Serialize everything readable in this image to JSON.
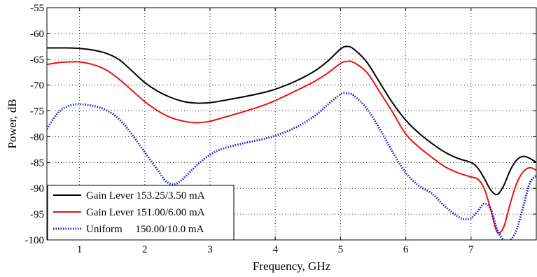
{
  "chart_data": {
    "type": "line",
    "title": "",
    "xlabel": "Frequency, GHz",
    "ylabel": "Power, dB",
    "xlim": [
      0.5,
      8.0
    ],
    "ylim": [
      -100,
      -55
    ],
    "x_ticks": [
      1,
      2,
      3,
      4,
      5,
      6,
      7
    ],
    "y_ticks": [
      -100,
      -95,
      -90,
      -85,
      -80,
      -75,
      -70,
      -65,
      -60,
      -55
    ],
    "grid": true,
    "grid_style": "dotted",
    "legend": {
      "position": "bottom-left"
    },
    "series": [
      {
        "name": "Gain Lever 153.25/3.50 mA",
        "color": "#000000",
        "line_style": "solid",
        "x": [
          0.5,
          0.8,
          1.0,
          1.2,
          1.4,
          1.6,
          1.8,
          2.0,
          2.2,
          2.4,
          2.6,
          2.8,
          3.0,
          3.2,
          3.5,
          3.8,
          4.0,
          4.3,
          4.6,
          4.8,
          5.0,
          5.1,
          5.2,
          5.4,
          5.6,
          5.8,
          6.0,
          6.2,
          6.4,
          6.6,
          6.8,
          7.0,
          7.1,
          7.2,
          7.3,
          7.4,
          7.5,
          7.6,
          7.7,
          7.8,
          7.9,
          8.0
        ],
        "y": [
          -62.8,
          -62.8,
          -62.9,
          -63.2,
          -63.8,
          -65.0,
          -67.2,
          -69.5,
          -71.2,
          -72.4,
          -73.2,
          -73.5,
          -73.4,
          -73.0,
          -72.3,
          -71.5,
          -70.8,
          -69.3,
          -67.3,
          -65.4,
          -63.0,
          -62.5,
          -63.0,
          -65.5,
          -69.5,
          -73.5,
          -76.8,
          -79.3,
          -81.3,
          -83.0,
          -84.2,
          -85.0,
          -86.0,
          -88.0,
          -90.3,
          -91.2,
          -89.5,
          -86.5,
          -84.5,
          -83.8,
          -84.2,
          -85.0
        ]
      },
      {
        "name": "Gain Lever 151.00/6.00 mA",
        "color": "#e8130a",
        "line_style": "solid",
        "x": [
          0.5,
          0.7,
          0.9,
          1.0,
          1.2,
          1.4,
          1.6,
          1.8,
          2.0,
          2.2,
          2.4,
          2.6,
          2.8,
          3.0,
          3.2,
          3.5,
          3.8,
          4.0,
          4.3,
          4.6,
          4.8,
          5.0,
          5.1,
          5.2,
          5.4,
          5.6,
          5.8,
          6.0,
          6.2,
          6.4,
          6.6,
          6.8,
          7.0,
          7.1,
          7.2,
          7.3,
          7.4,
          7.5,
          7.6,
          7.7,
          7.8,
          7.9,
          8.0
        ],
        "y": [
          -66.0,
          -65.6,
          -65.5,
          -65.5,
          -66.0,
          -67.0,
          -68.8,
          -71.0,
          -73.2,
          -75.0,
          -76.3,
          -77.0,
          -77.3,
          -77.0,
          -76.3,
          -75.2,
          -74.0,
          -73.0,
          -71.2,
          -69.3,
          -67.7,
          -65.8,
          -65.4,
          -65.6,
          -67.5,
          -71.3,
          -75.3,
          -79.5,
          -82.0,
          -84.0,
          -85.8,
          -87.0,
          -87.8,
          -88.2,
          -90.0,
          -94.0,
          -98.5,
          -97.5,
          -93.0,
          -89.0,
          -86.8,
          -86.0,
          -86.5
        ]
      },
      {
        "name": "Uniform     150.00/10.0 mA",
        "color": "#1a1adb",
        "line_style": "dotted",
        "x": [
          0.5,
          0.6,
          0.7,
          0.8,
          0.9,
          1.0,
          1.2,
          1.4,
          1.6,
          1.8,
          2.0,
          2.2,
          2.3,
          2.4,
          2.5,
          2.6,
          2.8,
          3.0,
          3.2,
          3.5,
          3.8,
          4.0,
          4.3,
          4.6,
          4.8,
          5.0,
          5.1,
          5.2,
          5.4,
          5.6,
          5.8,
          6.0,
          6.2,
          6.4,
          6.6,
          6.8,
          6.9,
          7.0,
          7.1,
          7.2,
          7.3,
          7.4,
          7.5,
          7.6,
          7.7,
          7.8,
          7.9,
          8.0
        ],
        "y": [
          -78.5,
          -76.5,
          -75.0,
          -74.2,
          -73.8,
          -73.7,
          -74.0,
          -74.8,
          -76.5,
          -79.5,
          -83.0,
          -86.5,
          -88.3,
          -89.2,
          -89.0,
          -88.0,
          -85.5,
          -83.5,
          -82.3,
          -81.3,
          -80.5,
          -79.8,
          -78.3,
          -76.0,
          -73.8,
          -71.8,
          -71.6,
          -72.0,
          -74.5,
          -78.5,
          -83.0,
          -87.0,
          -89.5,
          -91.0,
          -93.5,
          -95.5,
          -96.0,
          -95.8,
          -94.5,
          -93.0,
          -94.0,
          -98.0,
          -100.0,
          -100.0,
          -98.0,
          -93.5,
          -89.0,
          -87.5
        ]
      }
    ]
  }
}
